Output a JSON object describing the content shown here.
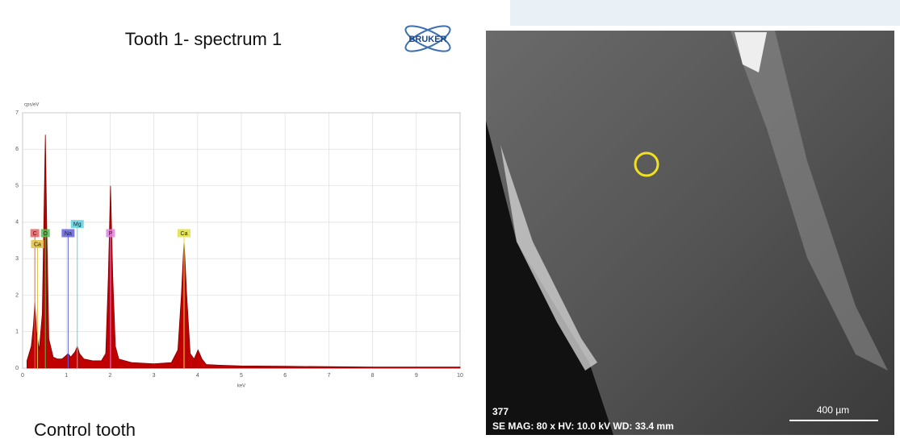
{
  "slide_title": "Tooth 1- spectrum 1",
  "logo": "BRUKER",
  "caption": "Control tooth",
  "chart_data": {
    "type": "area",
    "y_label": "cps/eV",
    "x_label": "keV",
    "x": [
      0.1,
      0.2,
      0.25,
      0.28,
      0.32,
      0.38,
      0.45,
      0.5,
      0.52,
      0.55,
      0.6,
      0.7,
      0.8,
      0.9,
      1.0,
      1.04,
      1.1,
      1.2,
      1.25,
      1.3,
      1.4,
      1.6,
      1.8,
      1.9,
      1.96,
      2.01,
      2.06,
      2.12,
      2.2,
      2.5,
      3.0,
      3.4,
      3.55,
      3.63,
      3.69,
      3.75,
      3.83,
      3.92,
      4.01,
      4.1,
      4.2,
      4.5,
      5,
      6,
      7,
      8,
      9,
      10
    ],
    "values": [
      0.2,
      0.6,
      1.2,
      1.8,
      1.0,
      0.5,
      1.5,
      5.0,
      6.4,
      4.0,
      0.8,
      0.3,
      0.25,
      0.25,
      0.35,
      0.4,
      0.3,
      0.45,
      0.6,
      0.4,
      0.25,
      0.2,
      0.2,
      0.4,
      2.5,
      5.0,
      2.5,
      0.6,
      0.25,
      0.15,
      0.12,
      0.15,
      0.5,
      2.0,
      3.5,
      2.0,
      0.4,
      0.25,
      0.5,
      0.25,
      0.1,
      0.08,
      0.06,
      0.05,
      0.04,
      0.03,
      0.03,
      0.03
    ],
    "color": "#c00000",
    "xlim": [
      0,
      10
    ],
    "ylim": [
      0,
      7
    ],
    "xticks": [
      0,
      1,
      2,
      3,
      4,
      5,
      6,
      7,
      8,
      9,
      10
    ],
    "yticks": [
      0,
      1,
      2,
      3,
      4,
      5,
      6,
      7
    ],
    "grid": true,
    "element_lines": [
      {
        "label": "C",
        "energy": 0.28,
        "height": 3.7,
        "color": "#e06060"
      },
      {
        "label": "Ca",
        "energy": 0.34,
        "height": 3.4,
        "color": "#e0c040"
      },
      {
        "label": "O",
        "energy": 0.52,
        "height": 3.7,
        "color": "#50c050"
      },
      {
        "label": "Na",
        "energy": 1.04,
        "height": 3.7,
        "color": "#6060e0"
      },
      {
        "label": "Mg",
        "energy": 1.25,
        "height": 3.95,
        "color": "#60d0e0"
      },
      {
        "label": "P",
        "energy": 2.01,
        "height": 3.7,
        "color": "#e080e0"
      },
      {
        "label": "Ca",
        "energy": 3.69,
        "height": 3.7,
        "color": "#e0e040"
      }
    ]
  },
  "sem_image": {
    "id": "377",
    "info": "SE  MAG: 80 x  HV: 10.0 kV  WD: 33.4 mm",
    "scale_bar": "400 µm"
  }
}
